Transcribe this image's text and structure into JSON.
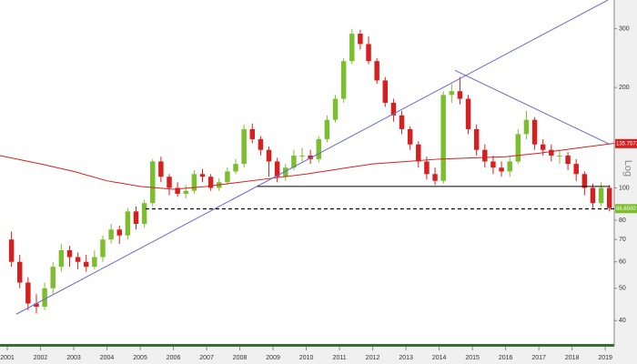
{
  "chart_data": {
    "type": "candlestick",
    "log_scale": true,
    "up_color": "#7cbf2e",
    "down_color": "#d62020",
    "x": [
      2001.125,
      2001.375,
      2001.625,
      2001.875,
      2002.125,
      2002.375,
      2002.625,
      2002.875,
      2003.125,
      2003.375,
      2003.625,
      2003.875,
      2004.125,
      2004.375,
      2004.625,
      2004.875,
      2005.125,
      2005.375,
      2005.625,
      2005.875,
      2006.125,
      2006.375,
      2006.625,
      2006.875,
      2007.125,
      2007.375,
      2007.625,
      2007.875,
      2008.125,
      2008.375,
      2008.625,
      2008.875,
      2009.125,
      2009.375,
      2009.625,
      2009.875,
      2010.125,
      2010.375,
      2010.625,
      2010.875,
      2011.125,
      2011.375,
      2011.625,
      2011.875,
      2012.125,
      2012.375,
      2012.625,
      2012.875,
      2013.125,
      2013.375,
      2013.625,
      2013.875,
      2014.125,
      2014.375,
      2014.625,
      2014.875,
      2015.125,
      2015.375,
      2015.625,
      2015.875,
      2016.125,
      2016.375,
      2016.625,
      2016.875,
      2017.125,
      2017.375,
      2017.625,
      2017.875,
      2018.125,
      2018.375,
      2018.625,
      2018.875,
      2019.125
    ],
    "open": [
      70,
      60,
      52,
      45,
      44,
      50,
      58,
      65,
      62,
      60,
      58,
      62,
      70,
      75,
      72,
      85,
      78,
      90,
      120,
      108,
      100,
      96,
      98,
      110,
      108,
      100,
      104,
      112,
      118,
      150,
      140,
      130,
      120,
      108,
      115,
      125,
      125,
      122,
      140,
      160,
      185,
      240,
      290,
      270,
      240,
      210,
      180,
      165,
      150,
      135,
      120,
      110,
      105,
      190,
      195,
      185,
      150,
      130,
      120,
      115,
      112,
      120,
      145,
      160,
      135,
      130,
      125,
      125,
      118,
      110,
      100,
      90,
      100
    ],
    "close": [
      60,
      52,
      45,
      44,
      50,
      58,
      65,
      62,
      60,
      58,
      62,
      70,
      75,
      72,
      85,
      78,
      90,
      120,
      108,
      100,
      96,
      98,
      110,
      108,
      100,
      104,
      112,
      118,
      150,
      140,
      130,
      120,
      108,
      115,
      125,
      125,
      122,
      140,
      160,
      185,
      240,
      290,
      270,
      240,
      210,
      180,
      165,
      150,
      135,
      120,
      110,
      105,
      190,
      195,
      185,
      150,
      130,
      120,
      115,
      112,
      120,
      145,
      160,
      135,
      130,
      125,
      125,
      118,
      110,
      100,
      90,
      100,
      87
    ],
    "high": [
      74,
      63,
      54,
      48,
      52,
      60,
      68,
      67,
      64,
      63,
      65,
      72,
      78,
      77,
      87,
      88,
      92,
      122,
      124,
      110,
      104,
      102,
      113,
      114,
      110,
      107,
      115,
      122,
      155,
      156,
      143,
      133,
      123,
      118,
      130,
      132,
      130,
      143,
      165,
      190,
      245,
      300,
      298,
      285,
      245,
      215,
      185,
      170,
      153,
      138,
      124,
      115,
      195,
      205,
      215,
      190,
      155,
      135,
      125,
      120,
      124,
      150,
      170,
      163,
      140,
      135,
      130,
      128,
      122,
      112,
      103,
      104,
      102
    ],
    "low": [
      58,
      50,
      43,
      42,
      43,
      48,
      56,
      58,
      57,
      56,
      57,
      60,
      68,
      68,
      70,
      75,
      76,
      88,
      104,
      95,
      94,
      93,
      96,
      104,
      98,
      98,
      102,
      110,
      115,
      136,
      125,
      108,
      104,
      105,
      113,
      120,
      118,
      119,
      137,
      157,
      180,
      235,
      260,
      235,
      205,
      175,
      158,
      145,
      130,
      115,
      106,
      102,
      103,
      180,
      178,
      145,
      125,
      115,
      110,
      108,
      108,
      118,
      140,
      130,
      125,
      120,
      118,
      113,
      105,
      95,
      87,
      88,
      85
    ],
    "moving_average": {
      "color": "#d62020",
      "x": [
        2000.78,
        2002,
        2003,
        2004,
        2005,
        2006,
        2007,
        2008,
        2009,
        2010,
        2011,
        2012,
        2013,
        2014,
        2015,
        2016,
        2017,
        2018,
        2019.27
      ],
      "values": [
        125,
        118,
        112,
        105,
        101,
        99,
        101,
        104,
        107,
        110,
        114,
        118,
        120,
        122,
        123,
        124,
        127,
        131,
        136
      ]
    },
    "trendlines": [
      {
        "color": "#6a6ad0",
        "dashed": false,
        "x": [
          2001.27,
          2019.08
        ],
        "values": [
          41.8,
          366
        ]
      },
      {
        "color": "#6a6ad0",
        "dashed": false,
        "x": [
          2014.48,
          2019.14
        ],
        "values": [
          225,
          135
        ]
      },
      {
        "color": "#000000",
        "dashed": false,
        "x": [
          2008.53,
          2019.14
        ],
        "values": [
          101,
          101
        ]
      },
      {
        "color": "#000000",
        "dashed": true,
        "x": [
          2005.16,
          2019.27
        ],
        "values": [
          86.5,
          86.5
        ]
      }
    ],
    "price_labels": [
      {
        "value": 135.7572,
        "color": "#d62020"
      },
      {
        "value": 86.65,
        "label": "86.6500",
        "color": "#7cbf2e"
      }
    ],
    "scale_label": "Log",
    "xlim": [
      2000.78,
      2019.27
    ],
    "xticks": [
      2001,
      2002,
      2003,
      2004,
      2005,
      2006,
      2007,
      2008,
      2009,
      2010,
      2011,
      2012,
      2013,
      2014,
      2015,
      2016,
      2017,
      2018,
      2019
    ],
    "ylim": [
      33.6,
      366
    ],
    "yticks": [
      40,
      50,
      60,
      70,
      80,
      100,
      200,
      300
    ]
  }
}
